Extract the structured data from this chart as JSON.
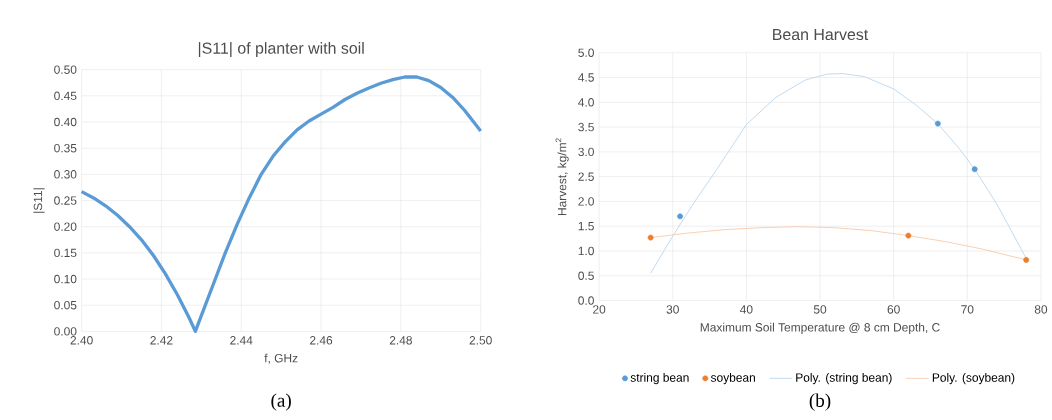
{
  "chart_data": [
    {
      "type": "line",
      "title": "|S11| of planter with soil",
      "xlabel": "f, GHz",
      "ylabel": "|S11|",
      "annotations": [
        "(a)"
      ],
      "grid": true,
      "marker": "none",
      "xlim": [
        2.4,
        2.5
      ],
      "ylim": [
        0,
        0.5
      ],
      "xticks": [
        {
          "value": 2.4,
          "label": "2.40"
        },
        {
          "value": 2.42,
          "label": "2.42"
        },
        {
          "value": 2.44,
          "label": "2.44"
        },
        {
          "value": 2.46,
          "label": "2.46"
        },
        {
          "value": 2.48,
          "label": "2.48"
        },
        {
          "value": 2.5,
          "label": "2.50"
        }
      ],
      "yticks": [
        {
          "value": 0,
          "label": "0.00"
        },
        {
          "value": 0.05,
          "label": "0.05"
        },
        {
          "value": 0.1,
          "label": "0.10"
        },
        {
          "value": 0.15,
          "label": "0.15"
        },
        {
          "value": 0.2,
          "label": "0.20"
        },
        {
          "value": 0.25,
          "label": "0.25"
        },
        {
          "value": 0.3,
          "label": "0.30"
        },
        {
          "value": 0.35,
          "label": "0.35"
        },
        {
          "value": 0.4,
          "label": "0.40"
        },
        {
          "value": 0.45,
          "label": "0.45"
        },
        {
          "value": 0.5,
          "label": "0.50"
        }
      ],
      "series": [
        {
          "color": "#5b9bd5",
          "x": [
            2.4,
            2.403,
            2.406,
            2.409,
            2.412,
            2.415,
            2.418,
            2.421,
            2.424,
            2.427,
            2.4285,
            2.43,
            2.433,
            2.436,
            2.439,
            2.442,
            2.445,
            2.448,
            2.451,
            2.454,
            2.457,
            2.46,
            2.463,
            2.466,
            2.469,
            2.472,
            2.475,
            2.478,
            2.481,
            2.484,
            2.487,
            2.49,
            2.493,
            2.496,
            2.5
          ],
          "values": [
            0.267,
            0.255,
            0.24,
            0.222,
            0.2,
            0.175,
            0.145,
            0.11,
            0.07,
            0.025,
            0.0,
            0.03,
            0.09,
            0.15,
            0.205,
            0.255,
            0.3,
            0.335,
            0.362,
            0.385,
            0.402,
            0.415,
            0.428,
            0.443,
            0.455,
            0.465,
            0.474,
            0.481,
            0.486,
            0.486,
            0.479,
            0.466,
            0.447,
            0.422,
            0.383
          ]
        }
      ]
    },
    {
      "type": "scatter",
      "title": "Bean Harvest",
      "xlabel": "Maximum Soil Temperature @ 8 cm Depth, C",
      "ylabel": "Harvest, kg/m$^{2}$",
      "annotations": [
        "(b)"
      ],
      "grid": true,
      "marker": "circle",
      "legend": "bottom",
      "xlim": [
        20,
        80
      ],
      "ylim": [
        0,
        5
      ],
      "xticks": [
        20,
        30,
        40,
        50,
        60,
        70,
        80
      ],
      "yticks": [
        {
          "value": 0,
          "label": "0.0"
        },
        {
          "value": 0.5,
          "label": "0.5"
        },
        {
          "value": 1,
          "label": "1.0"
        },
        {
          "value": 1.5,
          "label": "1.5"
        },
        {
          "value": 2,
          "label": "2.0"
        },
        {
          "value": 2.5,
          "label": "2.5"
        },
        {
          "value": 3,
          "label": "3.0"
        },
        {
          "value": 3.5,
          "label": "3.5"
        },
        {
          "value": 4,
          "label": "4.0"
        },
        {
          "value": 4.5,
          "label": "4.5"
        },
        {
          "value": 5,
          "label": "5.0"
        }
      ],
      "series": [
        {
          "name": "string bean",
          "color": "#5b9bd5",
          "x": [
            31,
            66,
            71
          ],
          "values": [
            1.7,
            3.57,
            2.65
          ]
        },
        {
          "name": "soybean",
          "color": "#ed7d31",
          "x": [
            27,
            62,
            78
          ],
          "values": [
            1.27,
            1.31,
            0.82
          ]
        },
        {
          "name": "Poly. (string bean)",
          "type": "line",
          "marker": "none",
          "color": "#bdd7ee",
          "x": [
            27,
            30,
            33,
            36,
            40,
            44,
            48,
            51,
            53,
            56,
            60,
            63,
            66,
            69,
            71,
            74,
            76,
            78
          ],
          "values": [
            0.55,
            1.3,
            2.0,
            2.65,
            3.55,
            4.1,
            4.45,
            4.57,
            4.58,
            4.52,
            4.27,
            3.95,
            3.57,
            3.05,
            2.65,
            1.95,
            1.4,
            0.85
          ]
        },
        {
          "name": "Poly. (soybean)",
          "type": "line",
          "marker": "none",
          "color": "#f8cbad",
          "x": [
            27,
            32,
            37,
            42,
            47,
            52,
            57,
            62,
            67,
            72,
            78
          ],
          "values": [
            1.27,
            1.36,
            1.43,
            1.47,
            1.49,
            1.47,
            1.41,
            1.31,
            1.19,
            1.04,
            0.82
          ]
        }
      ]
    }
  ]
}
